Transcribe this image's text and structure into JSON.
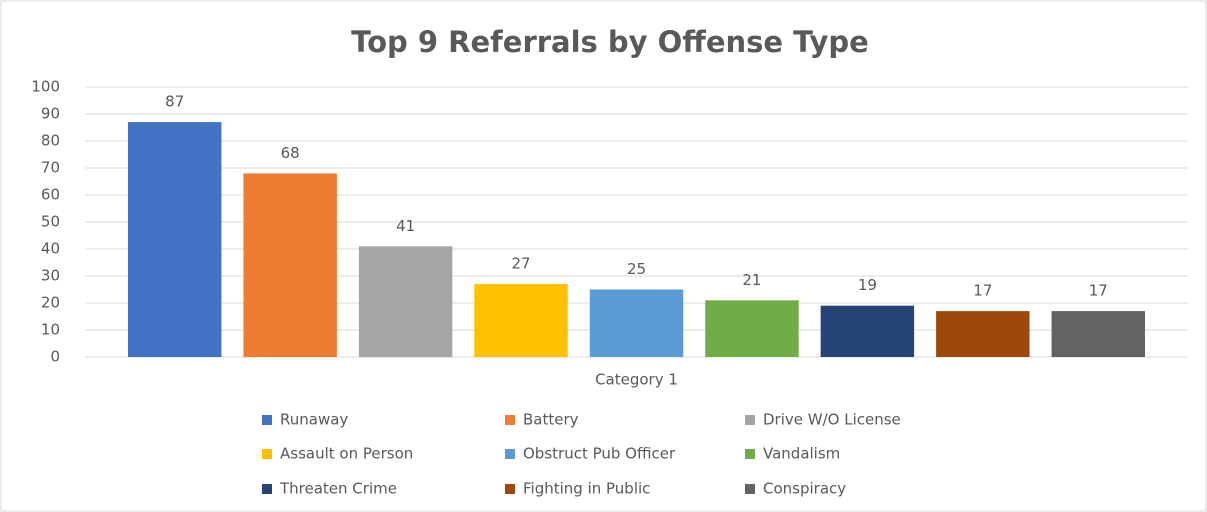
{
  "chart_data": {
    "type": "bar",
    "title": "Top 9 Referrals by Offense Type",
    "categories": [
      "Category 1"
    ],
    "series": [
      {
        "name": "Runaway",
        "color": "#4472c4",
        "values": [
          87
        ]
      },
      {
        "name": "Battery",
        "color": "#ed7d31",
        "values": [
          68
        ]
      },
      {
        "name": "Drive W/O License",
        "color": "#a5a5a5",
        "values": [
          41
        ]
      },
      {
        "name": "Assault on Person",
        "color": "#ffc000",
        "values": [
          27
        ]
      },
      {
        "name": "Obstruct Pub Officer",
        "color": "#5b9bd5",
        "values": [
          25
        ]
      },
      {
        "name": "Vandalism",
        "color": "#70ad47",
        "values": [
          21
        ]
      },
      {
        "name": "Threaten Crime",
        "color": "#264478",
        "values": [
          19
        ]
      },
      {
        "name": "Fighting in Public",
        "color": "#9e480e",
        "values": [
          17
        ]
      },
      {
        "name": "Conspiracy",
        "color": "#636363",
        "values": [
          17
        ]
      }
    ],
    "ylim": [
      0,
      100
    ],
    "yticks": [
      0,
      10,
      20,
      30,
      40,
      50,
      60,
      70,
      80,
      90,
      100
    ],
    "grid": true,
    "legend": "bottom"
  }
}
